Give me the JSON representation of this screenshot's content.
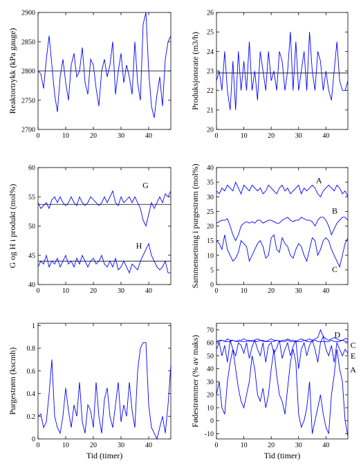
{
  "chart_data": [
    {
      "type": "line",
      "ylabel": "Reaktortrykk (kPa gauge)",
      "x": [
        0,
        1,
        2,
        3,
        4,
        5,
        6,
        7,
        8,
        9,
        10,
        11,
        12,
        13,
        14,
        15,
        16,
        17,
        18,
        19,
        20,
        21,
        22,
        23,
        24,
        25,
        26,
        27,
        28,
        29,
        30,
        31,
        32,
        33,
        34,
        35,
        36,
        37,
        38,
        39,
        40,
        41,
        42,
        43,
        44,
        45,
        46,
        47,
        48
      ],
      "xlim": [
        0,
        48
      ],
      "xticks": [
        0,
        10,
        20,
        30,
        40
      ],
      "ylim": [
        2700,
        2900
      ],
      "yticks": [
        2700,
        2750,
        2800,
        2850,
        2900
      ],
      "series": [
        {
          "color": "#0000ff",
          "setpoint": 2800,
          "values": [
            2800,
            2795,
            2770,
            2820,
            2860,
            2810,
            2760,
            2730,
            2790,
            2820,
            2780,
            2750,
            2810,
            2830,
            2790,
            2800,
            2840,
            2780,
            2760,
            2820,
            2810,
            2770,
            2740,
            2800,
            2820,
            2790,
            2810,
            2850,
            2760,
            2800,
            2830,
            2780,
            2810,
            2790,
            2760,
            2850,
            2780,
            2750,
            2880,
            2900,
            2800,
            2740,
            2720,
            2760,
            2790,
            2740,
            2820,
            2850,
            2860
          ]
        }
      ]
    },
    {
      "type": "line",
      "ylabel": "Produksjonsrate (m3/h)",
      "x": [
        0,
        1,
        2,
        3,
        4,
        5,
        6,
        7,
        8,
        9,
        10,
        11,
        12,
        13,
        14,
        15,
        16,
        17,
        18,
        19,
        20,
        21,
        22,
        23,
        24,
        25,
        26,
        27,
        28,
        29,
        30,
        31,
        32,
        33,
        34,
        35,
        36,
        37,
        38,
        39,
        40,
        41,
        42,
        43,
        44,
        45,
        46,
        47,
        48
      ],
      "xlim": [
        0,
        48
      ],
      "xticks": [
        0,
        10,
        20,
        30,
        40
      ],
      "ylim": [
        20,
        26
      ],
      "yticks": [
        20,
        21,
        22,
        23,
        24,
        25,
        26
      ],
      "series": [
        {
          "color": "#0000ff",
          "setpoint": 22.9,
          "values": [
            22.5,
            23,
            22,
            24,
            22,
            21,
            23.5,
            21,
            24,
            22,
            23.5,
            22,
            24.5,
            22,
            23,
            21.5,
            24,
            23,
            22,
            24,
            22.5,
            23,
            22,
            24,
            23.5,
            22,
            23,
            25,
            22,
            24.5,
            22,
            23,
            24,
            22,
            25,
            23,
            22,
            24,
            23.5,
            22,
            23,
            22,
            21.5,
            23,
            24.5,
            22.5,
            22,
            22,
            22.5
          ]
        }
      ]
    },
    {
      "type": "line",
      "ylabel": "G og H i produkt (mol%)",
      "x": [
        0,
        1,
        2,
        3,
        4,
        5,
        6,
        7,
        8,
        9,
        10,
        11,
        12,
        13,
        14,
        15,
        16,
        17,
        18,
        19,
        20,
        21,
        22,
        23,
        24,
        25,
        26,
        27,
        28,
        29,
        30,
        31,
        32,
        33,
        34,
        35,
        36,
        37,
        38,
        39,
        40,
        41,
        42,
        43,
        44,
        45,
        46,
        47,
        48
      ],
      "xlim": [
        0,
        48
      ],
      "xticks": [
        0,
        10,
        20,
        30,
        40
      ],
      "ylim": [
        40,
        60
      ],
      "yticks": [
        40,
        45,
        50,
        55,
        60
      ],
      "series": [
        {
          "name": "G",
          "color": "#0000ff",
          "setpoint": 53.7,
          "values": [
            54,
            53,
            53.5,
            54,
            53,
            54.5,
            55,
            54,
            55,
            54,
            53.5,
            54,
            55,
            54,
            53.5,
            55,
            54,
            53.5,
            54,
            55,
            54.5,
            54,
            53.5,
            54,
            55,
            54,
            55,
            56,
            54,
            53.5,
            55,
            54,
            54.5,
            55,
            54,
            55,
            54,
            53,
            51,
            50,
            52,
            54,
            53,
            54,
            55,
            54,
            55.5,
            55,
            56
          ]
        },
        {
          "name": "H",
          "color": "#0000ff",
          "setpoint": 44,
          "values": [
            43,
            44,
            43.5,
            45,
            43,
            44,
            43.5,
            44.5,
            43,
            44,
            45,
            43.5,
            44,
            43,
            44.5,
            43.5,
            45,
            44,
            43,
            44,
            44.5,
            43.5,
            44,
            45,
            43.5,
            43,
            44,
            43,
            44.5,
            42.5,
            43,
            44,
            43,
            42,
            43.5,
            43,
            42.5,
            44,
            45,
            46,
            47,
            45,
            44,
            43,
            42.5,
            43,
            44,
            42,
            42
          ]
        }
      ]
    },
    {
      "type": "line",
      "ylabel": "Sammensetning i purgestrøm (mol%)",
      "x": [
        0,
        1,
        2,
        3,
        4,
        5,
        6,
        7,
        8,
        9,
        10,
        11,
        12,
        13,
        14,
        15,
        16,
        17,
        18,
        19,
        20,
        21,
        22,
        23,
        24,
        25,
        26,
        27,
        28,
        29,
        30,
        31,
        32,
        33,
        34,
        35,
        36,
        37,
        38,
        39,
        40,
        41,
        42,
        43,
        44,
        45,
        46,
        47,
        48
      ],
      "xlim": [
        0,
        48
      ],
      "xticks": [
        0,
        10,
        20,
        30,
        40
      ],
      "ylim": [
        0,
        40
      ],
      "yticks": [
        0,
        5,
        10,
        15,
        20,
        25,
        30,
        35,
        40
      ],
      "series": [
        {
          "name": "A",
          "color": "#0000ff",
          "values": [
            32,
            31,
            33,
            32,
            34,
            33,
            32,
            35,
            33,
            31,
            34,
            33,
            32,
            34,
            33,
            32,
            33,
            31,
            32,
            34,
            33,
            32,
            31,
            33,
            34,
            32,
            33,
            31,
            32,
            33,
            34,
            31,
            33,
            32,
            33,
            34,
            33,
            31,
            30,
            32,
            33,
            34,
            33,
            32,
            34,
            33,
            31,
            32,
            30
          ]
        },
        {
          "name": "B",
          "color": "#0000ff",
          "values": [
            21,
            21.5,
            22,
            22,
            22.5,
            20,
            17,
            15,
            17,
            20,
            21,
            21.5,
            21,
            21.5,
            21,
            22,
            22,
            21,
            21.5,
            22,
            22,
            21.5,
            21,
            21,
            22,
            22.5,
            23,
            22,
            21.5,
            22,
            22,
            23,
            22.5,
            22,
            22,
            21.5,
            20,
            22,
            23,
            23,
            22,
            20,
            17,
            19,
            21,
            22,
            23,
            23,
            22
          ]
        },
        {
          "name": "C",
          "color": "#0000ff",
          "values": [
            15,
            14,
            12,
            17,
            12,
            10,
            8,
            9,
            11,
            15,
            14,
            13,
            8,
            10,
            12,
            14,
            15,
            13,
            9,
            10,
            16,
            17,
            12,
            11,
            16,
            14,
            13,
            10,
            9,
            12,
            14,
            13,
            10,
            8,
            12,
            16,
            15,
            10,
            12,
            15,
            16,
            15,
            12,
            10,
            8,
            6,
            10,
            14,
            16
          ]
        }
      ]
    },
    {
      "type": "line",
      "ylabel": "Purgestrøm (kscmh)",
      "xlabel": "Tid (timer)",
      "x": [
        0,
        1,
        2,
        3,
        4,
        5,
        6,
        7,
        8,
        9,
        10,
        11,
        12,
        13,
        14,
        15,
        16,
        17,
        18,
        19,
        20,
        21,
        22,
        23,
        24,
        25,
        26,
        27,
        28,
        29,
        30,
        31,
        32,
        33,
        34,
        35,
        36,
        37,
        38,
        39,
        40,
        41,
        42,
        43,
        44,
        45,
        46,
        47,
        48
      ],
      "xlim": [
        0,
        48
      ],
      "xticks": [
        0,
        10,
        20,
        30,
        40
      ],
      "ylim": [
        0,
        1.02
      ],
      "yticks": [
        0,
        0.2,
        0.4,
        0.6,
        0.8,
        1
      ],
      "series": [
        {
          "color": "#0000ff",
          "values": [
            0.2,
            0.22,
            0.1,
            0.15,
            0.4,
            0.7,
            0.2,
            0.1,
            0.05,
            0.2,
            0.45,
            0.25,
            0.1,
            0.3,
            0.2,
            0.5,
            0.15,
            0.05,
            0.3,
            0.25,
            0.1,
            0.5,
            0.2,
            0.05,
            0.35,
            0.45,
            0.2,
            0.1,
            0.3,
            0.5,
            0.15,
            0.3,
            0.2,
            0.5,
            0.25,
            0.1,
            0.6,
            0.8,
            0.85,
            0.85,
            0.3,
            0.1,
            0.05,
            0,
            0.1,
            0.2,
            0.05,
            0.3,
            0.65
          ]
        }
      ]
    },
    {
      "type": "line",
      "ylabel": "Fødestrømmer (% av maks)",
      "xlabel": "Tid (timer)",
      "x": [
        0,
        1,
        2,
        3,
        4,
        5,
        6,
        7,
        8,
        9,
        10,
        11,
        12,
        13,
        14,
        15,
        16,
        17,
        18,
        19,
        20,
        21,
        22,
        23,
        24,
        25,
        26,
        27,
        28,
        29,
        30,
        31,
        32,
        33,
        34,
        35,
        36,
        37,
        38,
        39,
        40,
        41,
        42,
        43,
        44,
        45,
        46,
        47,
        48
      ],
      "xlim": [
        0,
        48
      ],
      "xticks": [
        0,
        10,
        20,
        30,
        40
      ],
      "ylim": [
        -14,
        75
      ],
      "yticks": [
        -10,
        0,
        10,
        20,
        30,
        40,
        50,
        60,
        70
      ],
      "series": [
        {
          "name": "D",
          "color": "#0000ff",
          "values": [
            61,
            62,
            62,
            61,
            63,
            62,
            62,
            61,
            62,
            62,
            63,
            62,
            61,
            62,
            62,
            63,
            62,
            62,
            61,
            62,
            63,
            62,
            62,
            61,
            62,
            62,
            63,
            62,
            62,
            61,
            62,
            63,
            62,
            62,
            63,
            62,
            63,
            64,
            70,
            65,
            63,
            62,
            63,
            64,
            63,
            62,
            62,
            63,
            63
          ]
        },
        {
          "name": "C",
          "color": "#0000ff",
          "values": [
            61,
            61,
            62,
            61,
            61,
            61,
            62,
            61,
            61,
            61,
            61,
            61,
            62,
            61,
            61,
            61,
            62,
            61,
            61,
            61,
            61,
            61,
            62,
            61,
            61,
            61,
            62,
            61,
            61,
            61,
            61,
            61,
            62,
            61,
            61,
            61,
            62,
            61,
            61,
            61,
            61,
            61,
            62,
            61,
            61,
            61,
            62,
            61,
            61
          ]
        },
        {
          "name": "E",
          "color": "#0000ff",
          "values": [
            55,
            60,
            50,
            58,
            45,
            62,
            55,
            50,
            60,
            58,
            52,
            60,
            48,
            57,
            62,
            55,
            50,
            60,
            45,
            58,
            60,
            52,
            56,
            62,
            48,
            55,
            60,
            50,
            57,
            62,
            40,
            55,
            60,
            50,
            58,
            62,
            55,
            45,
            60,
            65,
            55,
            50,
            58,
            45,
            60,
            55,
            50,
            55,
            52
          ]
        },
        {
          "name": "A",
          "color": "#0000ff",
          "values": [
            20,
            30,
            10,
            5,
            30,
            45,
            55,
            40,
            25,
            15,
            10,
            20,
            30,
            50,
            40,
            20,
            15,
            25,
            10,
            20,
            40,
            55,
            35,
            20,
            15,
            5,
            25,
            45,
            55,
            45,
            5,
            -5,
            0,
            10,
            30,
            -10,
            0,
            10,
            20,
            5,
            -5,
            -10,
            20,
            35,
            55,
            40,
            30,
            0,
            -12
          ]
        }
      ]
    }
  ]
}
